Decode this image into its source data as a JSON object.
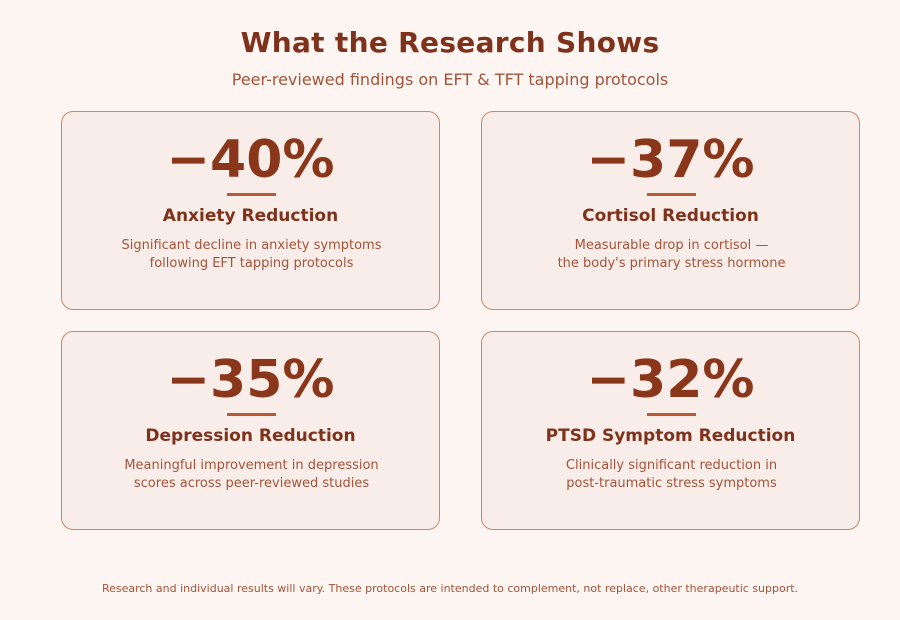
{
  "header": {
    "title": "What the Research Shows",
    "subtitle": "Peer-reviewed findings on EFT & TFT tapping protocols"
  },
  "stats": [
    {
      "value": "−40%",
      "label": "Anxiety Reduction",
      "description_lines": [
        "Significant decline in anxiety symptoms",
        "following EFT tapping protocols"
      ]
    },
    {
      "value": "−37%",
      "label": "Cortisol Reduction",
      "description_lines": [
        "Measurable drop in cortisol —",
        "the body's primary stress hormone"
      ]
    },
    {
      "value": "−35%",
      "label": "Depression Reduction",
      "description_lines": [
        "Meaningful improvement in depression",
        "scores across peer-reviewed studies"
      ]
    },
    {
      "value": "−32%",
      "label": "PTSD Symptom Reduction",
      "description_lines": [
        "Clinically significant reduction in",
        "post-traumatic stress symptoms"
      ]
    }
  ],
  "footnote": "Research and individual results will vary. These protocols are intended to complement, not replace, other therapeutic support."
}
